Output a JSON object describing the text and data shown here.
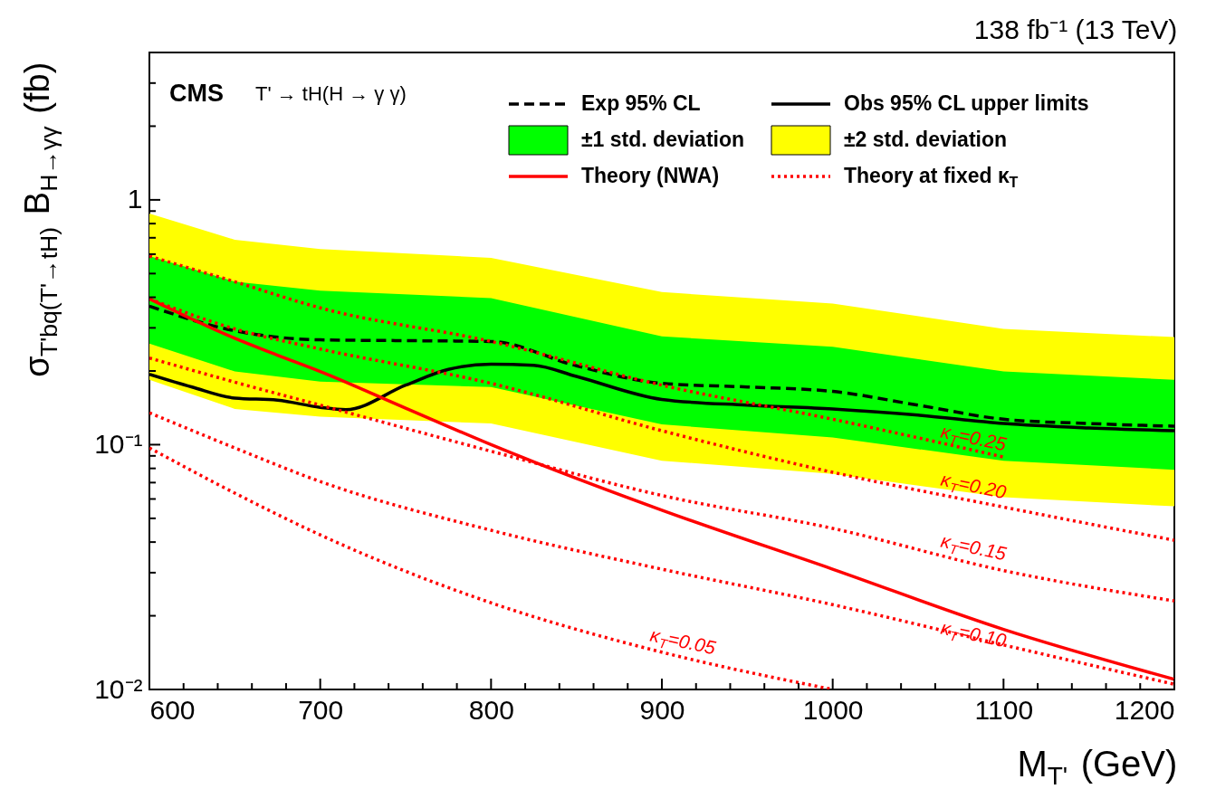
{
  "chart_data": {
    "type": "line",
    "title": "138 fb⁻¹ (13 TeV)",
    "xlabel": "M$_{T'}$ (GeV)",
    "ylabel": "σ$_{T'bq(T'→tH)}$ B$_{H→γγ}$ (fb)",
    "log": "y",
    "grid": false,
    "legend": "top right",
    "xlim": [
      600,
      1200
    ],
    "ylim": [
      0.01,
      4
    ],
    "xticks": [
      600,
      {
        "value": 620,
        "label": null
      },
      {
        "value": 640,
        "label": null
      },
      {
        "value": 660,
        "label": null
      },
      {
        "value": 680,
        "label": null
      },
      700,
      {
        "value": 720,
        "label": null
      },
      {
        "value": 740,
        "label": null
      },
      {
        "value": 760,
        "label": null
      },
      {
        "value": 780,
        "label": null
      },
      800,
      {
        "value": 820,
        "label": null
      },
      {
        "value": 840,
        "label": null
      },
      {
        "value": 860,
        "label": null
      },
      {
        "value": 880,
        "label": null
      },
      900,
      {
        "value": 920,
        "label": null
      },
      {
        "value": 940,
        "label": null
      },
      {
        "value": 960,
        "label": null
      },
      {
        "value": 980,
        "label": null
      },
      1000,
      {
        "value": 1020,
        "label": null
      },
      {
        "value": 1040,
        "label": null
      },
      {
        "value": 1060,
        "label": null
      },
      {
        "value": 1080,
        "label": null
      },
      1100,
      {
        "value": 1120,
        "label": null
      },
      {
        "value": 1140,
        "label": null
      },
      {
        "value": 1160,
        "label": null
      },
      {
        "value": 1180,
        "label": null
      },
      1200
    ],
    "yticks": [
      {
        "value": 0.01,
        "label": "10⁻²"
      },
      {
        "value": 0.02,
        "label": null
      },
      {
        "value": 0.03,
        "label": null
      },
      {
        "value": 0.04,
        "label": null
      },
      {
        "value": 0.05,
        "label": null
      },
      {
        "value": 0.06,
        "label": null
      },
      {
        "value": 0.07,
        "label": null
      },
      {
        "value": 0.08,
        "label": null
      },
      {
        "value": 0.09,
        "label": null
      },
      {
        "value": 0.1,
        "label": "10⁻¹"
      },
      {
        "value": 0.2,
        "label": null
      },
      {
        "value": 0.3,
        "label": null
      },
      {
        "value": 0.4,
        "label": null
      },
      {
        "value": 0.5,
        "label": null
      },
      {
        "value": 0.6,
        "label": null
      },
      {
        "value": 0.7,
        "label": null
      },
      {
        "value": 0.8,
        "label": null
      },
      {
        "value": 0.9,
        "label": null
      },
      1,
      {
        "value": 2,
        "label": null
      },
      {
        "value": 3,
        "label": null
      },
      {
        "value": 4,
        "label": null
      }
    ],
    "series": [
      {
        "name": "Exp 95% CL",
        "type": "line",
        "line_style": "dashed",
        "color": "#000000",
        "x": [
          600,
          650,
          700,
          750,
          800,
          850,
          900,
          950,
          1000,
          1050,
          1100,
          1150,
          1200
        ],
        "values": [
          0.368,
          0.292,
          0.268,
          0.266,
          0.264,
          0.21,
          0.178,
          0.172,
          0.165,
          0.145,
          0.127,
          0.122,
          0.119
        ]
      },
      {
        "name": "Obs 95% CL upper limits",
        "type": "line",
        "line_style": "solid",
        "color": "#000000",
        "x": [
          600,
          625,
          650,
          675,
          700,
          715,
          750,
          775,
          800,
          825,
          850,
          900,
          950,
          1000,
          1050,
          1100,
          1150,
          1200
        ],
        "values": [
          0.194,
          0.172,
          0.155,
          0.152,
          0.142,
          0.139,
          0.175,
          0.203,
          0.213,
          0.211,
          0.19,
          0.153,
          0.145,
          0.14,
          0.132,
          0.122,
          0.117,
          0.114
        ]
      },
      {
        "name": "±1 std. deviation",
        "type": "area",
        "color": "#00ff00",
        "x": [
          600,
          650,
          700,
          800,
          900,
          1000,
          1100,
          1200
        ],
        "values": [
          null,
          null,
          null,
          null,
          null,
          null,
          null,
          null
        ],
        "lower": [
          0.259,
          0.199,
          0.181,
          0.172,
          0.121,
          0.107,
          0.086,
          0.079
        ],
        "upper": [
          0.589,
          0.463,
          0.426,
          0.397,
          0.277,
          0.251,
          0.199,
          0.184
        ]
      },
      {
        "name": "±2 std. deviation",
        "type": "area",
        "color": "#ffff00",
        "x": [
          600,
          650,
          700,
          800,
          900,
          1000,
          1100,
          1200
        ],
        "values": [
          null,
          null,
          null,
          null,
          null,
          null,
          null,
          null
        ],
        "lower": [
          0.184,
          0.14,
          0.13,
          0.122,
          0.086,
          0.076,
          0.061,
          0.056
        ],
        "upper": [
          0.88,
          0.687,
          0.63,
          0.58,
          0.42,
          0.377,
          0.297,
          0.275
        ]
      },
      {
        "name": "Theory (NWA)",
        "type": "line",
        "line_style": "solid",
        "color": "#ff0000",
        "x": [
          600,
          650,
          675,
          700,
          750,
          800,
          900,
          1000,
          1100,
          1200
        ],
        "values": [
          0.394,
          0.272,
          0.232,
          0.199,
          0.141,
          0.1,
          0.054,
          0.031,
          0.0176,
          0.011
        ]
      },
      {
        "name": "Theory at fixed κ$_{T}$",
        "type": "line",
        "line_style": "dotted",
        "color": "#ff0000",
        "x": [
          600,
          650,
          700,
          800,
          900,
          1000,
          1100
        ],
        "values": [
          0.589,
          0.463,
          0.362,
          0.264,
          0.175,
          0.127,
          0.089
        ]
      },
      {
        "type": "line",
        "line_style": "dotted",
        "color": "#ff0000",
        "x": [
          600,
          650,
          700,
          800,
          900,
          1000,
          1100,
          1200
        ],
        "values": [
          0.394,
          0.297,
          0.246,
          0.178,
          0.114,
          0.0771,
          0.0556,
          0.0407
        ]
      },
      {
        "type": "line",
        "line_style": "dotted",
        "color": "#ff0000",
        "x": [
          600,
          650,
          700,
          800,
          900,
          1000,
          1100,
          1200
        ],
        "values": [
          0.226,
          0.18,
          0.145,
          0.094,
          0.062,
          0.0455,
          0.0306,
          0.023
        ]
      },
      {
        "type": "line",
        "line_style": "dotted",
        "color": "#ff0000",
        "x": [
          600,
          650,
          700,
          800,
          900,
          1000,
          1100,
          1200
        ],
        "values": [
          0.135,
          0.097,
          0.0707,
          0.0447,
          0.031,
          0.0222,
          0.0152,
          0.0105
        ]
      },
      {
        "type": "line",
        "line_style": "dotted",
        "color": "#ff0000",
        "x": [
          600,
          650,
          700,
          800,
          900,
          1000
        ],
        "values": [
          0.097,
          0.0634,
          0.0428,
          0.0226,
          0.0142,
          0.01
        ]
      }
    ],
    "annotations": [
      "CMS",
      "T' → tH(H → γ γ)",
      "κ$_{T}$=0.25",
      "κ$_{T}$=0.20",
      "κ$_{T}$=0.15",
      "κ$_{T}$=0.10",
      "κ$_{T}$=0.05"
    ]
  }
}
